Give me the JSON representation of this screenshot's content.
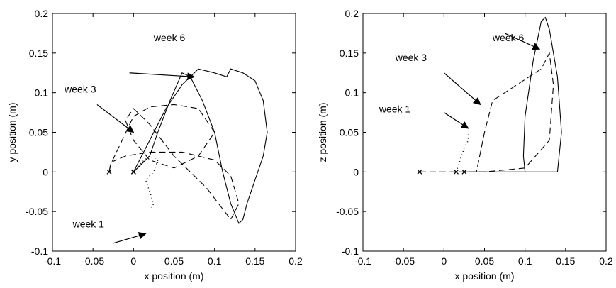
{
  "chart_data": [
    {
      "type": "line",
      "title": "",
      "xlabel": "x position (m)",
      "ylabel": "y position (m)",
      "xlim": [
        -0.1,
        0.2
      ],
      "ylim": [
        -0.1,
        0.2
      ],
      "xticks": [
        "-0.1",
        "-0.05",
        "0",
        "0.05",
        "0.1",
        "0.15",
        "0.2"
      ],
      "yticks": [
        "-0.1",
        "-0.05",
        "0",
        "0.05",
        "0.1",
        "0.15",
        "0.2"
      ],
      "grid": false,
      "series": [
        {
          "name": "week 1",
          "style": "dotted",
          "x": [
            0.0,
            0.01,
            0.02,
            0.03,
            0.025,
            0.015,
            0.02,
            0.025,
            0.022
          ],
          "y": [
            0.0,
            0.012,
            0.02,
            0.015,
            0.0,
            -0.01,
            -0.025,
            -0.04,
            -0.045
          ]
        },
        {
          "name": "week 3",
          "style": "dashed",
          "x": [
            -0.03,
            -0.028,
            -0.01,
            0.02,
            0.06,
            0.1,
            0.12,
            0.13,
            0.12,
            0.09,
            0.05,
            0.02,
            0.0,
            -0.01,
            0.0,
            0.02,
            0.05,
            0.08,
            0.1,
            0.08,
            0.05,
            0.02,
            0.0,
            -0.028,
            -0.03
          ],
          "y": [
            0.0,
            0.012,
            0.02,
            0.025,
            0.025,
            0.015,
            -0.005,
            -0.04,
            -0.06,
            -0.02,
            0.02,
            0.06,
            0.08,
            0.065,
            0.04,
            0.015,
            0.005,
            0.02,
            0.05,
            0.08,
            0.085,
            0.082,
            0.07,
            0.01,
            0.0
          ]
        },
        {
          "name": "week 6",
          "style": "solid",
          "x": [
            0.0,
            0.02,
            0.04,
            0.06,
            0.08,
            0.1,
            0.115,
            0.12,
            0.135,
            0.15,
            0.16,
            0.165,
            0.16,
            0.15,
            0.14,
            0.135,
            0.13,
            0.12,
            0.11,
            0.1,
            0.085,
            0.07,
            0.06,
            0.045,
            0.03,
            0.02,
            0.01,
            0.0
          ],
          "y": [
            0.0,
            0.04,
            0.08,
            0.11,
            0.13,
            0.125,
            0.12,
            0.13,
            0.125,
            0.115,
            0.09,
            0.05,
            0.02,
            -0.01,
            -0.04,
            -0.06,
            -0.065,
            -0.04,
            0.0,
            0.05,
            0.09,
            0.12,
            0.125,
            0.09,
            0.05,
            0.02,
            0.01,
            0.0
          ]
        }
      ],
      "annotations": [
        {
          "text": "week 6",
          "x": 0.025,
          "y": 0.165
        },
        {
          "text": "week 3",
          "x": -0.085,
          "y": 0.1
        },
        {
          "text": "week 1",
          "x": -0.075,
          "y": -0.07
        }
      ]
    },
    {
      "type": "line",
      "title": "",
      "xlabel": "x position (m)",
      "ylabel": "z position (m)",
      "xlim": [
        -0.1,
        0.2
      ],
      "ylim": [
        -0.1,
        0.2
      ],
      "xticks": [
        "-0.1",
        "-0.05",
        "0",
        "0.05",
        "0.1",
        "0.15",
        "0.2"
      ],
      "yticks": [
        "-0.1",
        "-0.05",
        "0",
        "0.05",
        "0.1",
        "0.15",
        "0.2"
      ],
      "grid": false,
      "series": [
        {
          "name": "week 1",
          "style": "dotted",
          "x": [
            0.015,
            0.02,
            0.025,
            0.03,
            0.03
          ],
          "y": [
            0.0,
            0.015,
            0.03,
            0.04,
            0.05
          ]
        },
        {
          "name": "week 3",
          "style": "dashed",
          "x": [
            -0.03,
            0.0,
            0.05,
            0.1,
            0.13,
            0.135,
            0.13,
            0.12,
            0.09,
            0.06,
            0.05,
            0.04
          ],
          "y": [
            0.0,
            0.0,
            0.0,
            0.005,
            0.04,
            0.11,
            0.15,
            0.13,
            0.11,
            0.09,
            0.05,
            0.0
          ]
        },
        {
          "name": "week 6",
          "style": "solid",
          "x": [
            0.025,
            0.1,
            0.14,
            0.145,
            0.14,
            0.13,
            0.125,
            0.12,
            0.11,
            0.1,
            0.098,
            0.1
          ],
          "y": [
            0.0,
            0.0,
            0.0,
            0.05,
            0.12,
            0.18,
            0.195,
            0.19,
            0.14,
            0.07,
            0.02,
            0.0
          ]
        }
      ],
      "annotations": [
        {
          "text": "week 6",
          "x": 0.06,
          "y": 0.165
        },
        {
          "text": "week 3",
          "x": -0.06,
          "y": 0.14
        },
        {
          "text": "week 1",
          "x": -0.08,
          "y": 0.075
        }
      ]
    }
  ]
}
